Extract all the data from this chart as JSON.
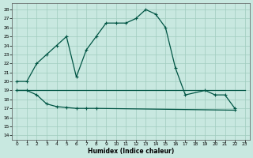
{
  "xlabel": "Humidex (Indice chaleur)",
  "bg_color": "#c8e8e0",
  "grid_color": "#a0ccbe",
  "line_color": "#005544",
  "xlim": [
    -0.5,
    23.5
  ],
  "ylim": [
    13.5,
    28.7
  ],
  "xtick_vals": [
    0,
    1,
    2,
    3,
    4,
    5,
    6,
    7,
    8,
    9,
    10,
    11,
    12,
    13,
    14,
    15,
    16,
    17,
    18,
    19,
    20,
    21,
    22,
    23
  ],
  "ytick_vals": [
    14,
    15,
    16,
    17,
    18,
    19,
    20,
    21,
    22,
    23,
    24,
    25,
    26,
    27,
    28
  ],
  "curve1_x": [
    0,
    1,
    2,
    3,
    4,
    5,
    6,
    7,
    8,
    9,
    10,
    11,
    12,
    13,
    14,
    15,
    16,
    17,
    19,
    20,
    21,
    22
  ],
  "curve1_y": [
    20,
    20,
    22,
    23,
    24,
    25,
    20.5,
    23.5,
    25,
    26.5,
    26.5,
    26.5,
    27,
    28,
    27.5,
    26,
    21.5,
    18.5,
    19,
    18.5,
    18.5,
    17
  ],
  "curve2_x": [
    0,
    1,
    2,
    3,
    4,
    5,
    6,
    7,
    8,
    22
  ],
  "curve2_y": [
    19,
    19,
    18.5,
    17.5,
    17.2,
    17.1,
    17.0,
    17.0,
    17.0,
    16.8
  ],
  "curve3_x": [
    0,
    1,
    2,
    8,
    9,
    10,
    11,
    12,
    13,
    14,
    15,
    16,
    17,
    18,
    19,
    20,
    21,
    22,
    23
  ],
  "curve3_y": [
    19,
    19,
    19,
    19,
    19,
    19,
    19,
    19,
    19,
    19,
    19,
    19,
    19,
    19,
    19,
    19,
    19,
    19,
    19
  ],
  "figsize": [
    3.2,
    2.0
  ],
  "dpi": 100
}
